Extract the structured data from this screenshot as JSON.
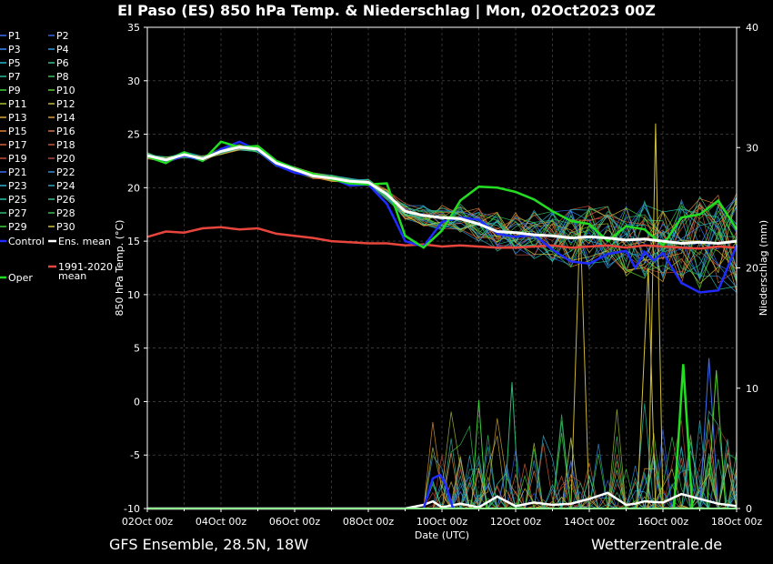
{
  "title": "El Paso  (ES)  850 hPa Temp. & Niederschlag | Mon, 02Oct2023 00Z",
  "footer": {
    "left": "GFS Ensemble, 28.5N, 18W",
    "right": "Wetterzentrale.de"
  },
  "colors": {
    "background": "#000000",
    "ens_mean": "#ffffff",
    "climate_mean": "#e8463c",
    "control": "#1f2bff",
    "oper": "#22dd22",
    "grid": "#555555"
  },
  "chart_data": {
    "type": "line",
    "xlabel": "Date (UTC)",
    "ylabel": "850 hPa Temp. (°C)",
    "y2label": "Niederschlag (mm)",
    "xlim": [
      0,
      16
    ],
    "ylim": [
      -10,
      35
    ],
    "y2lim": [
      0,
      40
    ],
    "x_ticks": [
      "02Oct 00z",
      "04Oct 00z",
      "06Oct 00z",
      "08Oct 00z",
      "10Oct 00z",
      "12Oct 00z",
      "14Oct 00z",
      "16Oct 00z",
      "18Oct 00z"
    ],
    "y_ticks": [
      -10,
      -5,
      0,
      5,
      10,
      15,
      20,
      25,
      30,
      35
    ],
    "y2_ticks": [
      0,
      10,
      20,
      30,
      40
    ],
    "grid": true,
    "legend": {
      "members": [
        {
          "label": "P1",
          "color": "#3a6ff0"
        },
        {
          "label": "P2",
          "color": "#2f63e8"
        },
        {
          "label": "P3",
          "color": "#3b88f5"
        },
        {
          "label": "P4",
          "color": "#2c9be0"
        },
        {
          "label": "P5",
          "color": "#27b6c9"
        },
        {
          "label": "P6",
          "color": "#2fc28a"
        },
        {
          "label": "P7",
          "color": "#2ab89a"
        },
        {
          "label": "P8",
          "color": "#39c25a"
        },
        {
          "label": "P9",
          "color": "#3fcf3a"
        },
        {
          "label": "P10",
          "color": "#55d02a"
        },
        {
          "label": "P11",
          "color": "#a9c23a"
        },
        {
          "label": "P12",
          "color": "#c8b23a"
        },
        {
          "label": "P13",
          "color": "#d8a83a"
        },
        {
          "label": "P14",
          "color": "#e09a30"
        },
        {
          "label": "P15",
          "color": "#e0843a"
        },
        {
          "label": "P16",
          "color": "#d8743a"
        },
        {
          "label": "P17",
          "color": "#d0623a"
        },
        {
          "label": "P18",
          "color": "#c8523a"
        },
        {
          "label": "P19",
          "color": "#bf4a3a"
        },
        {
          "label": "P20",
          "color": "#b8423a"
        },
        {
          "label": "P21",
          "color": "#3a6ff0"
        },
        {
          "label": "P22",
          "color": "#2f8fe0"
        },
        {
          "label": "P23",
          "color": "#2fb0d0"
        },
        {
          "label": "P24",
          "color": "#2aa6c0"
        },
        {
          "label": "P25",
          "color": "#27c0a8"
        },
        {
          "label": "P26",
          "color": "#2fc290"
        },
        {
          "label": "P27",
          "color": "#30b870"
        },
        {
          "label": "P28",
          "color": "#35c050"
        },
        {
          "label": "P29",
          "color": "#3fcf3a"
        },
        {
          "label": "P30",
          "color": "#d2c23a"
        }
      ],
      "control": "Control",
      "ens_mean": "Ens. mean",
      "climate": "1991-2020 mean",
      "oper": "Oper"
    },
    "series": {
      "ens_mean": {
        "x": [
          0,
          0.5,
          1,
          1.5,
          2,
          2.5,
          3,
          3.5,
          4,
          4.5,
          5,
          5.5,
          6,
          6.5,
          7,
          7.5,
          8,
          8.5,
          9,
          9.5,
          10,
          10.5,
          11,
          11.5,
          12,
          12.5,
          13,
          13.5,
          14,
          14.5,
          15,
          15.5,
          16
        ],
        "y": [
          23.0,
          22.6,
          23.1,
          22.7,
          23.4,
          23.8,
          23.6,
          22.3,
          21.7,
          21.1,
          20.9,
          20.6,
          20.5,
          19.4,
          17.8,
          17.4,
          17.2,
          17.1,
          16.6,
          15.9,
          15.8,
          15.6,
          15.5,
          15.3,
          15.4,
          15.3,
          15.1,
          15.2,
          15.0,
          14.8,
          14.9,
          14.8,
          15.0
        ]
      },
      "climate_mean": {
        "x": [
          0,
          0.5,
          1,
          1.5,
          2,
          2.5,
          3,
          3.5,
          4,
          4.5,
          5,
          5.5,
          6,
          6.5,
          7,
          7.5,
          8,
          8.5,
          9,
          9.5,
          10,
          10.5,
          11,
          11.5,
          12,
          12.5,
          13,
          13.5,
          14,
          14.5,
          15,
          15.5,
          16
        ],
        "y": [
          15.4,
          15.9,
          15.8,
          16.2,
          16.3,
          16.1,
          16.2,
          15.7,
          15.5,
          15.3,
          15.0,
          14.9,
          14.8,
          14.8,
          14.6,
          14.7,
          14.5,
          14.6,
          14.5,
          14.4,
          14.4,
          14.5,
          14.6,
          14.4,
          14.5,
          14.6,
          14.4,
          14.6,
          14.5,
          14.4,
          14.3,
          14.5,
          14.4
        ]
      },
      "control": {
        "x": [
          0,
          0.5,
          1,
          1.5,
          2,
          2.5,
          3,
          3.5,
          4,
          4.5,
          5,
          5.5,
          6,
          6.5,
          6.75,
          7,
          7.5,
          8,
          8.5,
          9,
          9.5,
          10,
          10.5,
          11,
          11.5,
          12,
          12.5,
          13,
          13.25,
          13.5,
          13.75,
          14,
          14.5,
          15,
          15.5,
          15.75,
          16
        ],
        "y": [
          23.0,
          22.4,
          23.0,
          22.6,
          23.6,
          24.3,
          23.5,
          22.1,
          21.4,
          21.1,
          20.9,
          20.2,
          20.3,
          18.5,
          16.8,
          15.0,
          14.5,
          16.8,
          17.2,
          17.0,
          15.7,
          15.4,
          15.6,
          14.2,
          13.1,
          12.9,
          13.8,
          14.1,
          12.5,
          14.0,
          13.2,
          13.9,
          11.1,
          10.2,
          10.4,
          12.5,
          14.6
        ]
      },
      "oper": {
        "x": [
          0,
          0.5,
          1,
          1.5,
          2,
          2.5,
          3,
          3.5,
          4,
          4.5,
          5,
          5.5,
          6,
          6.5,
          7,
          7.5,
          8,
          8.5,
          9,
          9.5,
          10,
          10.5,
          11,
          11.5,
          12,
          12.5,
          13,
          13.5,
          14,
          14.5,
          15,
          15.5,
          16
        ],
        "y": [
          22.9,
          22.3,
          23.3,
          22.5,
          24.3,
          23.8,
          23.9,
          22.5,
          21.8,
          21.3,
          20.8,
          20.4,
          20.3,
          20.4,
          15.5,
          14.4,
          16.0,
          18.8,
          20.1,
          20.0,
          19.6,
          18.9,
          17.8,
          16.9,
          16.6,
          15.0,
          16.4,
          16.1,
          14.6,
          17.2,
          17.5,
          18.8,
          16.1
        ]
      },
      "precip_mean": {
        "x": [
          0,
          1,
          2,
          3,
          4,
          5,
          6,
          7,
          7.5,
          7.75,
          8,
          8.5,
          9,
          9.5,
          10,
          10.5,
          11,
          11.5,
          12,
          12.5,
          13,
          13.25,
          13.5,
          14,
          14.5,
          15,
          15.25,
          15.5,
          16
        ],
        "y": [
          0,
          0,
          0,
          0,
          0,
          0,
          0,
          0,
          0.3,
          0.6,
          0.1,
          0.4,
          0.1,
          1.0,
          0.2,
          0.5,
          0.3,
          0.4,
          0.8,
          1.3,
          0.3,
          0.4,
          0.6,
          0.5,
          1.2,
          0.8,
          0.6,
          0.4,
          0.2
        ]
      }
    }
  }
}
